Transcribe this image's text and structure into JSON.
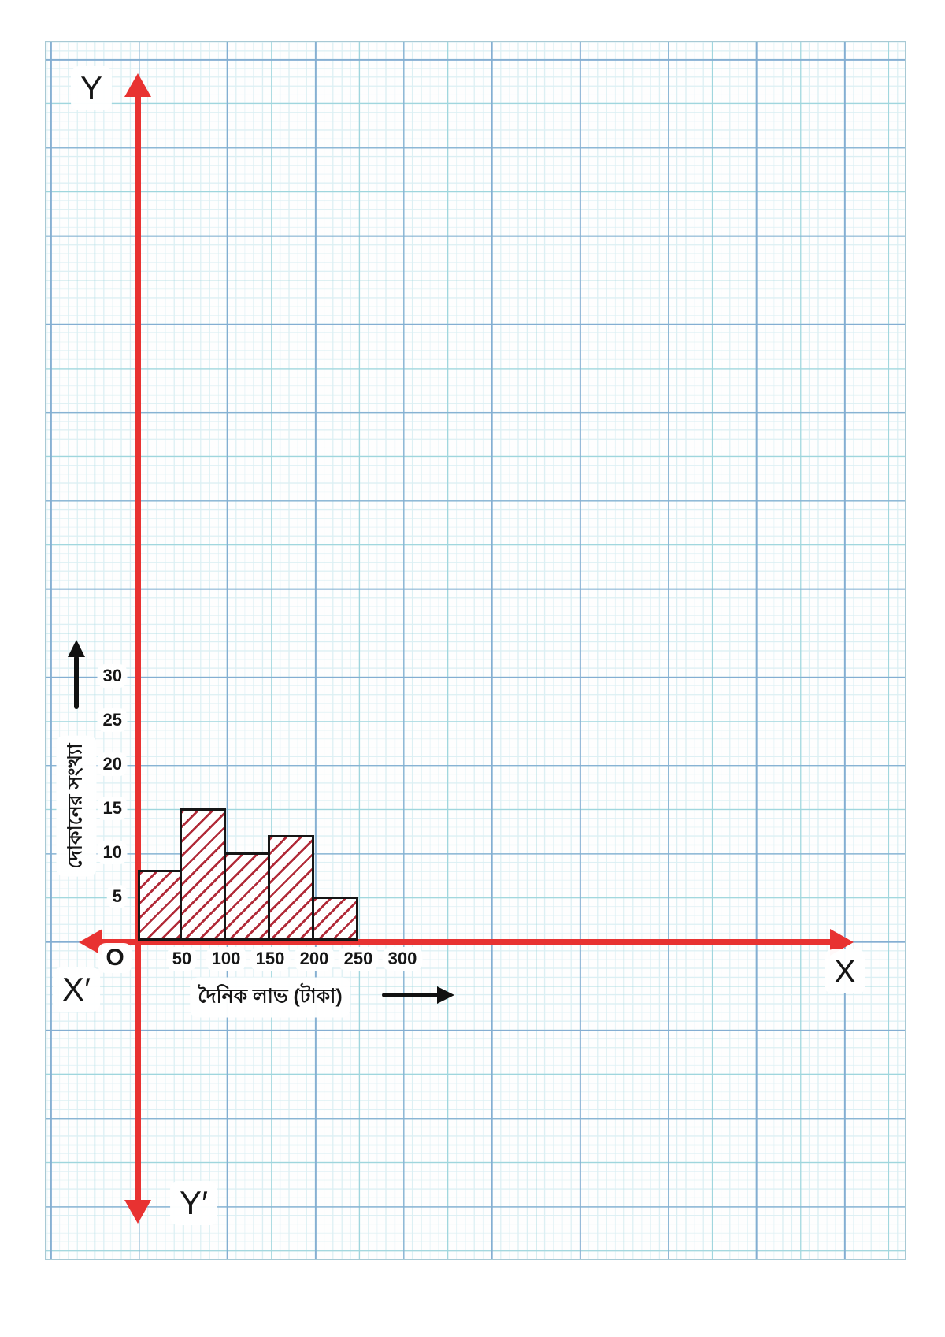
{
  "axes": {
    "y_top_label": "Y",
    "y_bottom_label": "Y′",
    "x_left_label": "X′",
    "x_right_label": "X",
    "origin_label": "O"
  },
  "axis_titles": {
    "y": "দোকানের সংখ্যা",
    "x": "দৈনিক লাভ (টাকা)"
  },
  "chart_data": {
    "type": "bar",
    "subtype": "histogram",
    "categories": [
      "0-50",
      "50-100",
      "100-150",
      "150-200",
      "200-250"
    ],
    "values": [
      8,
      15,
      10,
      12,
      5
    ],
    "bin_width": 50,
    "x_ticks": [
      50,
      100,
      150,
      200,
      250,
      300
    ],
    "y_ticks": [
      5,
      10,
      15,
      20,
      25,
      30
    ],
    "xlabel": "দৈনিক লাভ (টাকা)",
    "ylabel": "দোকানের সংখ্যা",
    "xlim": [
      0,
      300
    ],
    "ylim": [
      0,
      30
    ],
    "grid": "millimeter graph paper",
    "legend": "none",
    "colors": {
      "axis_red": "#e83231",
      "hatch_red": "#b12a38",
      "bar_outline": "#161616",
      "bar_fill": "#ffffff",
      "grid_fine": "#dbeff3",
      "grid_medium": "#9fd6dd",
      "grid_major": "#84aed2",
      "text": "#161616"
    }
  }
}
